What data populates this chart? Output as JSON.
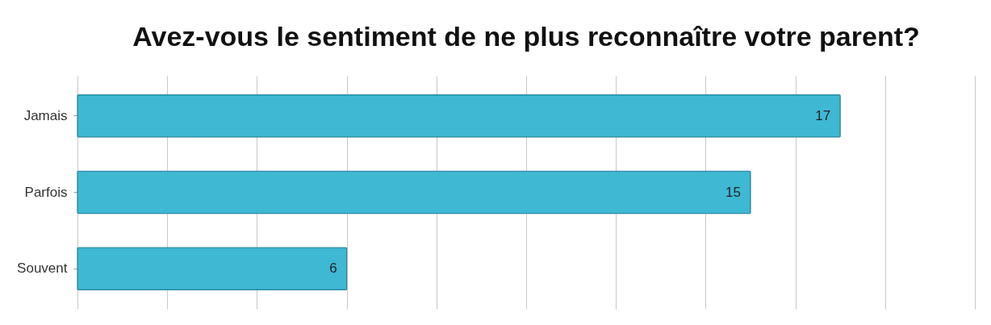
{
  "chart_data": {
    "type": "bar",
    "orientation": "horizontal",
    "title": "Avez-vous le sentiment de ne plus reconnaître votre parent?",
    "categories": [
      "Jamais",
      "Parfois",
      "Souvent"
    ],
    "values": [
      17,
      15,
      6
    ],
    "color": "#3fb8d4",
    "xlim": [
      0,
      20
    ],
    "xticks": [
      {
        "value": 0,
        "label": null
      },
      {
        "value": 2,
        "label": null
      },
      {
        "value": 4,
        "label": null
      },
      {
        "value": 6,
        "label": null
      },
      {
        "value": 8,
        "label": null
      },
      {
        "value": 10,
        "label": null
      },
      {
        "value": 12,
        "label": null
      },
      {
        "value": 14,
        "label": null
      },
      {
        "value": 16,
        "label": null
      },
      {
        "value": 18,
        "label": null
      },
      {
        "value": 20,
        "label": null
      }
    ],
    "grid": "x",
    "tick_labels": "y",
    "data_labels": true
  }
}
